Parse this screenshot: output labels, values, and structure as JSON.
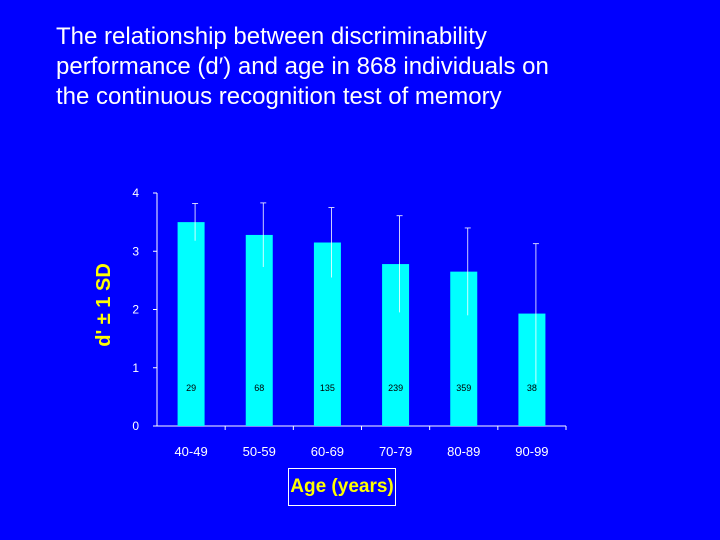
{
  "slide": {
    "title_lines": [
      "The relationship between discriminability",
      "performance (d′) and age in 868 individuals on",
      "the continuous recognition test of memory"
    ]
  },
  "colors": {
    "background": "#0000FF",
    "bar": "#00FFFF",
    "text": "#FFFFFF",
    "axis_label": "#FFFF00"
  },
  "chart_data": {
    "type": "bar",
    "categories": [
      "40-49",
      "50-59",
      "60-69",
      "70-79",
      "80-89",
      "90-99"
    ],
    "values": [
      3.5,
      3.28,
      3.15,
      2.78,
      2.65,
      1.93
    ],
    "error_sd": [
      0.32,
      0.55,
      0.6,
      0.83,
      0.75,
      1.2
    ],
    "counts": [
      "29",
      "68",
      "135",
      "239",
      "359",
      "38"
    ],
    "ylim": [
      0,
      4
    ],
    "yticks": [
      "0",
      "1",
      "2",
      "3",
      "4"
    ],
    "ylabel": "d' ± 1 SD",
    "xlabel": "Age (years)",
    "grid": false,
    "error_bars": true
  }
}
